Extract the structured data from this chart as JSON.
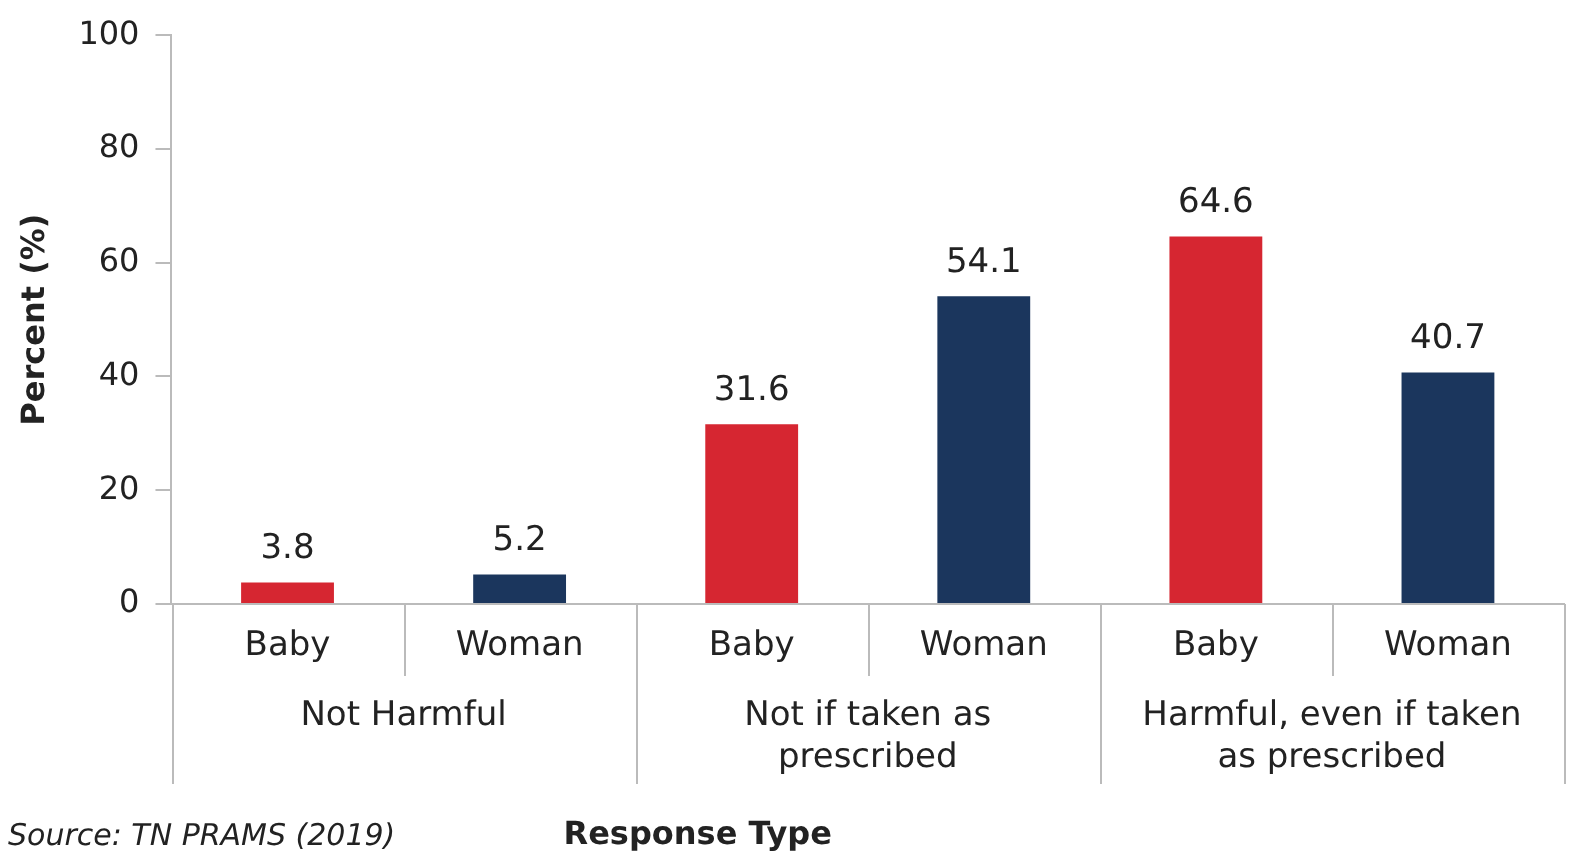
{
  "chart_data": {
    "type": "bar",
    "categories": [
      "Not Harmful",
      "Not if taken as prescribed",
      "Harmful, even if taken as prescribed"
    ],
    "series": [
      {
        "name": "Baby",
        "color": "#d62631",
        "values": [
          3.8,
          31.6,
          64.6
        ]
      },
      {
        "name": "Woman",
        "color": "#1b365d",
        "values": [
          5.2,
          54.1,
          40.7
        ]
      }
    ],
    "xlabel": "Response Type",
    "ylabel": "Percent (%)",
    "ylim": [
      0,
      100
    ],
    "yticks": [
      0,
      20,
      40,
      60,
      80,
      100
    ],
    "data_labels": true,
    "grid": false,
    "legend": false,
    "annotations": [
      "Source: TN PRAMS (2019)"
    ]
  }
}
